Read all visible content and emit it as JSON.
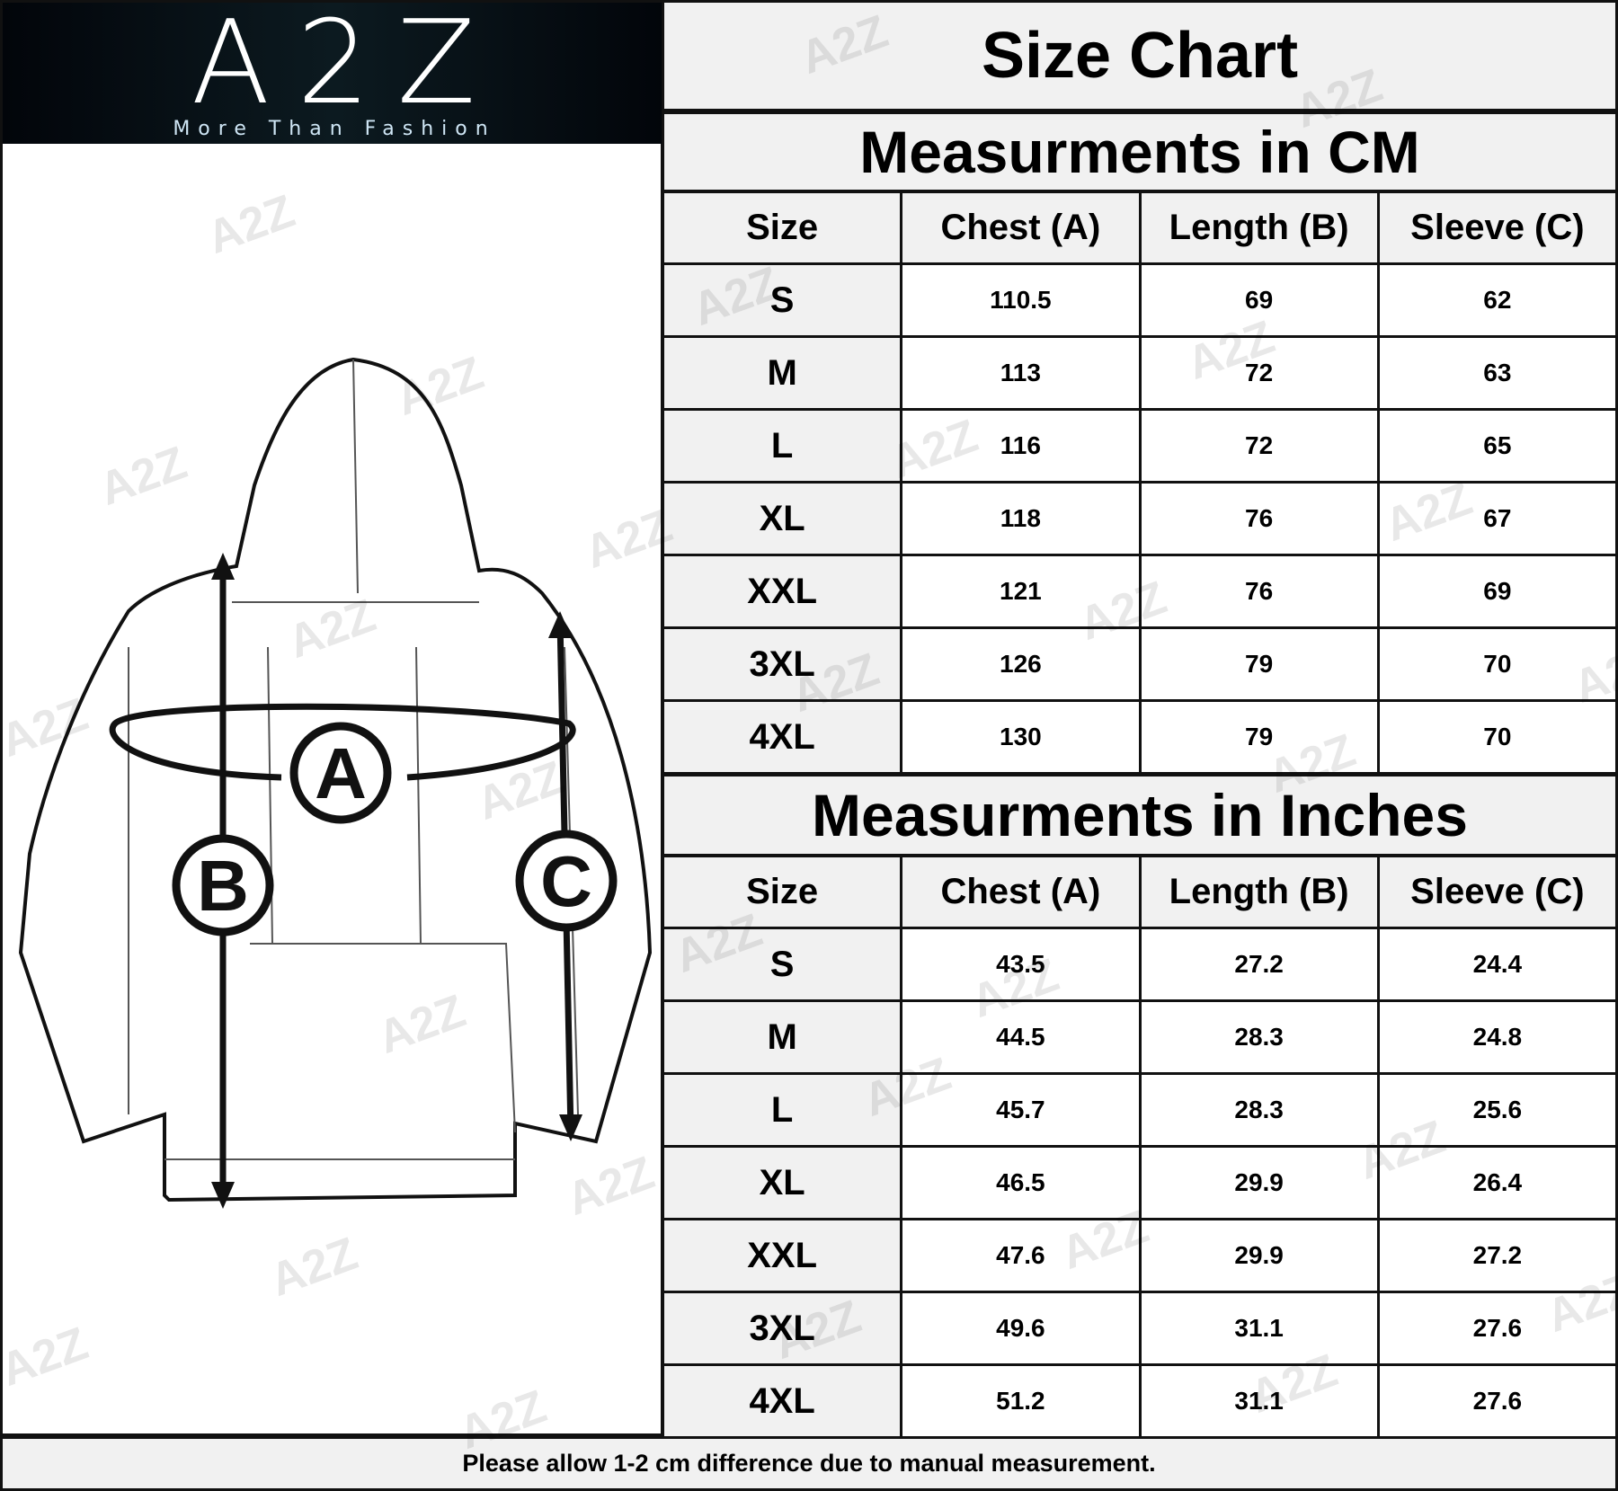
{
  "brand": {
    "logo_text": "A2Z",
    "tagline": "More Than Fashion"
  },
  "title": "Size Chart",
  "diagram_labels": {
    "a": "A",
    "b": "B",
    "c": "C"
  },
  "cm": {
    "heading": "Measurments in CM",
    "columns": [
      "Size",
      "Chest (A)",
      "Length (B)",
      "Sleeve (C)"
    ],
    "rows": [
      [
        "S",
        "110.5",
        "69",
        "62"
      ],
      [
        "M",
        "113",
        "72",
        "63"
      ],
      [
        "L",
        "116",
        "72",
        "65"
      ],
      [
        "XL",
        "118",
        "76",
        "67"
      ],
      [
        "XXL",
        "121",
        "76",
        "69"
      ],
      [
        "3XL",
        "126",
        "79",
        "70"
      ],
      [
        "4XL",
        "130",
        "79",
        "70"
      ]
    ]
  },
  "inches": {
    "heading": "Measurments in Inches",
    "columns": [
      "Size",
      "Chest (A)",
      "Length (B)",
      "Sleeve (C)"
    ],
    "rows": [
      [
        "S",
        "43.5",
        "27.2",
        "24.4"
      ],
      [
        "M",
        "44.5",
        "28.3",
        "24.8"
      ],
      [
        "L",
        "45.7",
        "28.3",
        "25.6"
      ],
      [
        "XL",
        "46.5",
        "29.9",
        "26.4"
      ],
      [
        "XXL",
        "47.6",
        "29.9",
        "27.2"
      ],
      [
        "3XL",
        "49.6",
        "31.1",
        "27.6"
      ],
      [
        "4XL",
        "51.2",
        "31.1",
        "27.6"
      ]
    ]
  },
  "footer": "Please allow 1-2 cm difference due to manual measurement.",
  "watermark": "A2Z"
}
